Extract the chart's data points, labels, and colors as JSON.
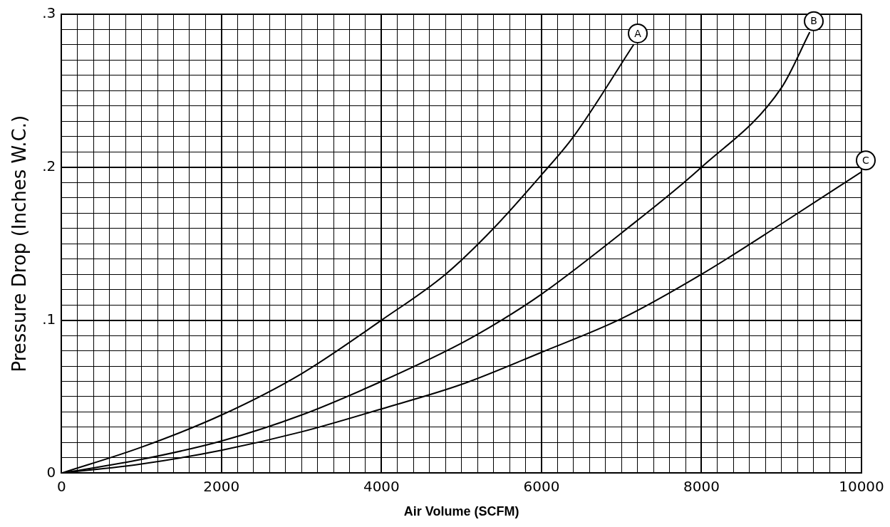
{
  "chart_data": {
    "type": "line",
    "xlabel": "Air Volume (SCFM)",
    "ylabel": "Pressure Drop (Inches W.C.)",
    "xlim": [
      0,
      10000
    ],
    "ylim": [
      0,
      0.3
    ],
    "xticks": [
      0,
      {
        "value": 200,
        "label": null
      },
      {
        "value": 400,
        "label": null
      },
      {
        "value": 600,
        "label": null
      },
      {
        "value": 800,
        "label": null
      },
      {
        "value": 1000,
        "label": null
      },
      {
        "value": 1200,
        "label": null
      },
      {
        "value": 1400,
        "label": null
      },
      {
        "value": 1600,
        "label": null
      },
      {
        "value": 1800,
        "label": null
      },
      2000,
      {
        "value": 2200,
        "label": null
      },
      {
        "value": 2400,
        "label": null
      },
      {
        "value": 2600,
        "label": null
      },
      {
        "value": 2800,
        "label": null
      },
      {
        "value": 3000,
        "label": null
      },
      {
        "value": 3200,
        "label": null
      },
      {
        "value": 3400,
        "label": null
      },
      {
        "value": 3600,
        "label": null
      },
      {
        "value": 3800,
        "label": null
      },
      4000,
      {
        "value": 4200,
        "label": null
      },
      {
        "value": 4400,
        "label": null
      },
      {
        "value": 4600,
        "label": null
      },
      {
        "value": 4800,
        "label": null
      },
      {
        "value": 5000,
        "label": null
      },
      {
        "value": 5200,
        "label": null
      },
      {
        "value": 5400,
        "label": null
      },
      {
        "value": 5600,
        "label": null
      },
      {
        "value": 5800,
        "label": null
      },
      6000,
      {
        "value": 6200,
        "label": null
      },
      {
        "value": 6400,
        "label": null
      },
      {
        "value": 6600,
        "label": null
      },
      {
        "value": 6800,
        "label": null
      },
      {
        "value": 7000,
        "label": null
      },
      {
        "value": 7200,
        "label": null
      },
      {
        "value": 7400,
        "label": null
      },
      {
        "value": 7600,
        "label": null
      },
      {
        "value": 7800,
        "label": null
      },
      8000,
      {
        "value": 8200,
        "label": null
      },
      {
        "value": 8400,
        "label": null
      },
      {
        "value": 8600,
        "label": null
      },
      {
        "value": 8800,
        "label": null
      },
      {
        "value": 9000,
        "label": null
      },
      {
        "value": 9200,
        "label": null
      },
      {
        "value": 9400,
        "label": null
      },
      {
        "value": 9600,
        "label": null
      },
      {
        "value": 9800,
        "label": null
      },
      10000
    ],
    "yticks": [
      0,
      {
        "value": 0.01,
        "label": null
      },
      {
        "value": 0.02,
        "label": null
      },
      {
        "value": 0.03,
        "label": null
      },
      {
        "value": 0.04,
        "label": null
      },
      {
        "value": 0.05,
        "label": null
      },
      {
        "value": 0.06,
        "label": null
      },
      {
        "value": 0.07,
        "label": null
      },
      {
        "value": 0.08,
        "label": null
      },
      {
        "value": 0.09,
        "label": null
      },
      {
        "value": 0.1,
        "label": ".1"
      },
      {
        "value": 0.11,
        "label": null
      },
      {
        "value": 0.12,
        "label": null
      },
      {
        "value": 0.13,
        "label": null
      },
      {
        "value": 0.14,
        "label": null
      },
      {
        "value": 0.15,
        "label": null
      },
      {
        "value": 0.16,
        "label": null
      },
      {
        "value": 0.17,
        "label": null
      },
      {
        "value": 0.18,
        "label": null
      },
      {
        "value": 0.19,
        "label": null
      },
      {
        "value": 0.2,
        "label": ".2"
      },
      {
        "value": 0.21,
        "label": null
      },
      {
        "value": 0.22,
        "label": null
      },
      {
        "value": 0.23,
        "label": null
      },
      {
        "value": 0.24,
        "label": null
      },
      {
        "value": 0.25,
        "label": null
      },
      {
        "value": 0.26,
        "label": null
      },
      {
        "value": 0.27,
        "label": null
      },
      {
        "value": 0.28,
        "label": null
      },
      {
        "value": 0.29,
        "label": null
      },
      {
        "value": 0.3,
        "label": ".3"
      }
    ],
    "grid": true,
    "legend": false,
    "marker": "none",
    "line_style": "solid",
    "series": [
      {
        "name": "A",
        "color": "#000000",
        "x": [
          0,
          1000,
          2000,
          3000,
          4000,
          4800,
          5400,
          6000,
          6400,
          7150
        ],
        "values": [
          0,
          0.017,
          0.038,
          0.065,
          0.1,
          0.13,
          0.16,
          0.195,
          0.22,
          0.28
        ]
      },
      {
        "name": "B",
        "color": "#000000",
        "x": [
          0,
          1000,
          2000,
          3000,
          4000,
          5000,
          5500,
          6000,
          7000,
          8000,
          9000,
          9350
        ],
        "values": [
          0,
          0.009,
          0.021,
          0.038,
          0.06,
          0.085,
          0.1,
          0.117,
          0.157,
          0.2,
          0.252,
          0.288
        ]
      },
      {
        "name": "C",
        "color": "#000000",
        "x": [
          0,
          1000,
          2000,
          3000,
          4000,
          5000,
          6000,
          7000,
          8000,
          9000,
          10000
        ],
        "values": [
          0,
          0.006,
          0.015,
          0.027,
          0.042,
          0.058,
          0.079,
          0.101,
          0.13,
          0.163,
          0.197
        ]
      }
    ]
  }
}
